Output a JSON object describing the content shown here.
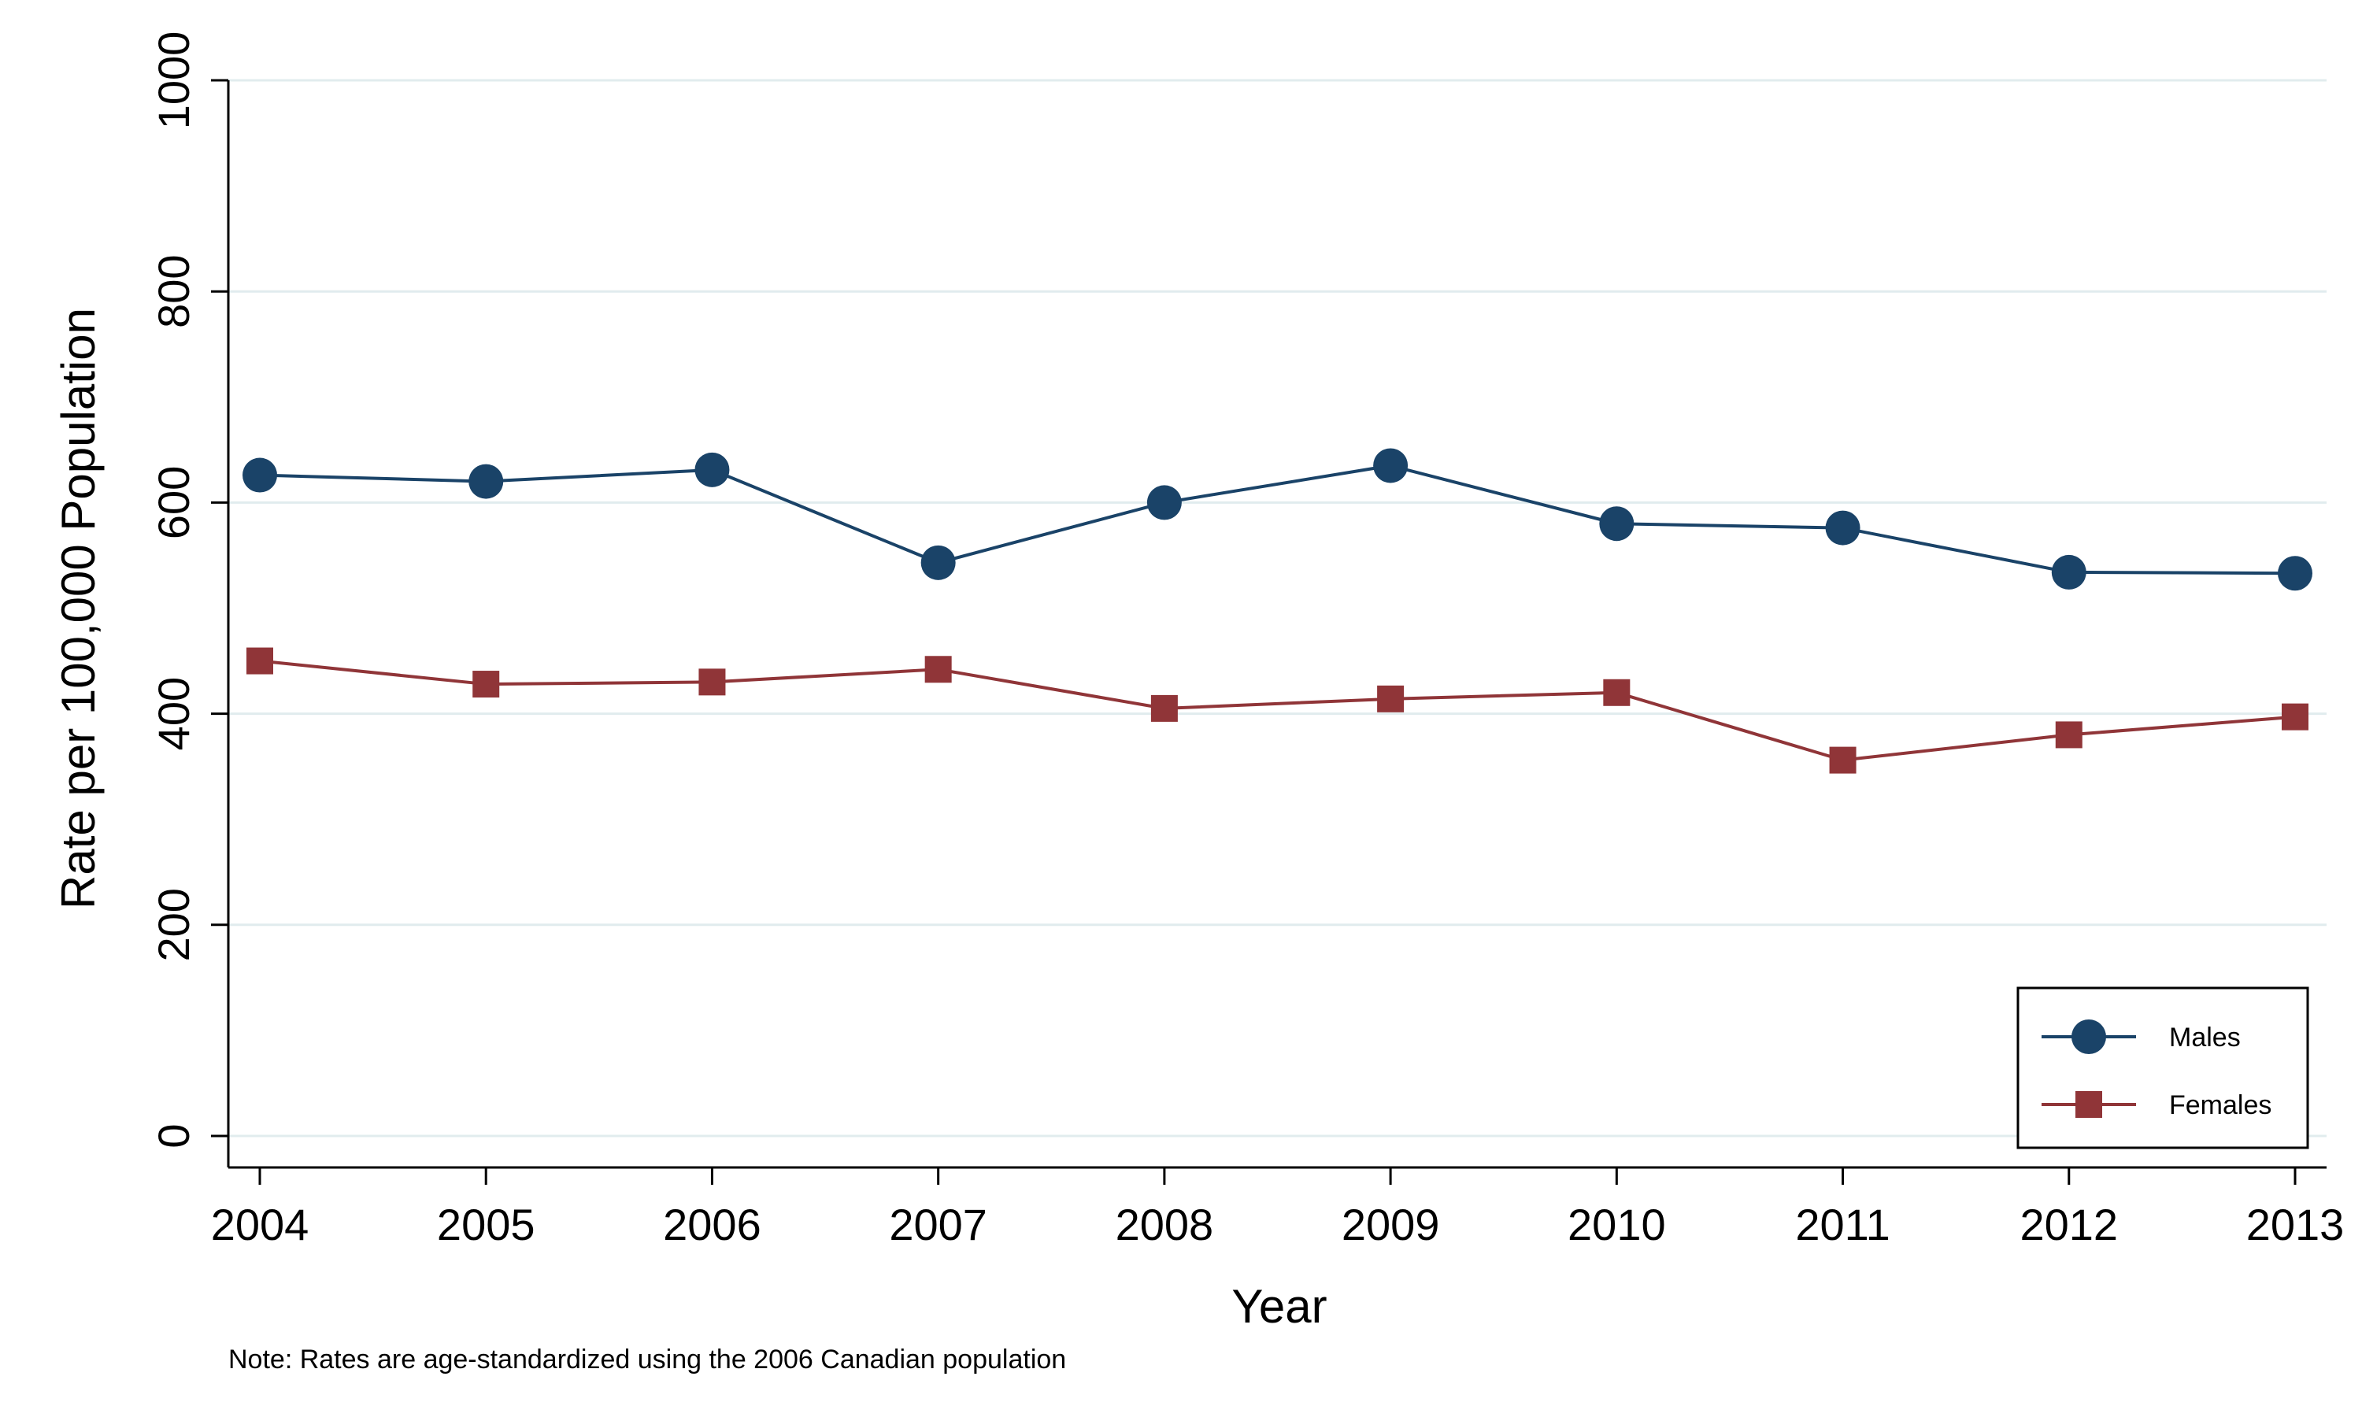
{
  "chart_data": {
    "type": "line",
    "x": [
      2004,
      2005,
      2006,
      2007,
      2008,
      2009,
      2010,
      2011,
      2012,
      2013
    ],
    "series": [
      {
        "name": "Males",
        "values": [
          626,
          620,
          631,
          543,
          600,
          635,
          580,
          576,
          534,
          533
        ],
        "color": "#1a4368",
        "marker": "circle"
      },
      {
        "name": "Females",
        "values": [
          450,
          428,
          430,
          442,
          405,
          414,
          420,
          356,
          380,
          397
        ],
        "color": "#903538",
        "marker": "square"
      }
    ],
    "xlabel": "Year",
    "ylabel": "Rate per 100,000 Population",
    "ylim": [
      0,
      1000
    ],
    "yticks": [
      0,
      200,
      400,
      600,
      800,
      1000
    ],
    "xticks": [
      2004,
      2005,
      2006,
      2007,
      2008,
      2009,
      2010,
      2011,
      2012,
      2013
    ],
    "grid": "horizontal",
    "legend_position": "bottom-right",
    "note": "Note: Rates are age-standardized using the 2006 Canadian population"
  }
}
